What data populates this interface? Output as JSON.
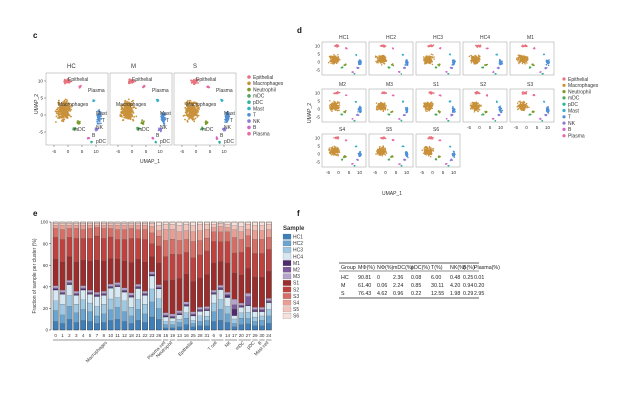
{
  "panels": {
    "c": {
      "letter": "c",
      "facets": [
        "HC",
        "M",
        "S"
      ],
      "ylabel": "UMAP_2",
      "xlabel": "UMAP_1",
      "xticks": [
        "-5",
        "0",
        "5",
        "10"
      ],
      "yticks": [
        "10",
        "5",
        "0",
        "-5"
      ],
      "cluster_labels": [
        "Epithelial",
        "Plasma",
        "Macrophages",
        "Mast",
        "T",
        "NK",
        "mDC",
        "B",
        "pDC"
      ]
    },
    "d": {
      "letter": "d",
      "facets": [
        "HC1",
        "HC2",
        "HC3",
        "HC4",
        "M1",
        "M2",
        "M3",
        "S1",
        "S2",
        "S3",
        "S4",
        "S5",
        "S6"
      ],
      "ylabel": "UMAP_2",
      "xlabel": "UMAP_1",
      "xticks": [
        "-5",
        "0",
        "5",
        "10"
      ],
      "yticks": [
        "10",
        "5",
        "0",
        "-5"
      ]
    },
    "e": {
      "letter": "e",
      "ylabel": "Fraction of sample per cluster (%)",
      "yticks": [
        "0",
        "20",
        "40",
        "60",
        "80",
        "100"
      ],
      "legend_title": "Sample",
      "group_labels": [
        "Macrophages",
        "Plasma cell",
        "Neutrophil",
        "Epithelial",
        "T cell",
        "NK",
        "mDC",
        "pDC",
        "B",
        "Mast cell"
      ]
    },
    "f": {
      "letter": "f"
    }
  },
  "legend_celltypes": [
    {
      "name": "Epithelial",
      "color": "#e8737d"
    },
    {
      "name": "Macrophages",
      "color": "#c9913a"
    },
    {
      "name": "Neutrophil",
      "color": "#7e9a2a"
    },
    {
      "name": "mDC",
      "color": "#49a85a"
    },
    {
      "name": "pDC",
      "color": "#2eb39b"
    },
    {
      "name": "Mast",
      "color": "#35aecb"
    },
    {
      "name": "T",
      "color": "#4f8fd6"
    },
    {
      "name": "NK",
      "color": "#8f7ad8"
    },
    {
      "name": "B",
      "color": "#d466c6"
    },
    {
      "name": "Plasma",
      "color": "#e86aa4"
    }
  ],
  "chart_data": {
    "type": "bar",
    "ylabel": "Fraction of sample per cluster (%)",
    "ylim": [
      0,
      100
    ],
    "categories": [
      "0",
      "1",
      "2",
      "3",
      "4",
      "5",
      "7",
      "8",
      "10",
      "11",
      "12",
      "18",
      "21",
      "22",
      "23",
      "26",
      "15",
      "19",
      "13",
      "16",
      "25",
      "28",
      "31",
      "6",
      "9",
      "14",
      "17",
      "20",
      "27",
      "29",
      "30",
      "24"
    ],
    "series": [
      {
        "name": "HC1",
        "color": "#3e7fb9",
        "values": [
          8,
          6,
          10,
          7,
          9,
          8,
          6,
          7,
          9,
          10,
          8,
          6,
          9,
          7,
          12,
          10,
          2,
          2,
          3,
          5,
          3,
          4,
          4,
          8,
          9,
          7,
          3,
          5,
          6,
          4,
          4,
          6
        ]
      },
      {
        "name": "HC2",
        "color": "#6aa4d0",
        "values": [
          10,
          8,
          12,
          9,
          10,
          9,
          7,
          8,
          10,
          11,
          9,
          7,
          10,
          8,
          14,
          10,
          3,
          3,
          4,
          6,
          3,
          4,
          5,
          9,
          10,
          8,
          3,
          6,
          5,
          4,
          5,
          7
        ]
      },
      {
        "name": "HC3",
        "color": "#9ec9e4",
        "values": [
          9,
          10,
          10,
          8,
          9,
          8,
          9,
          9,
          10,
          9,
          10,
          8,
          9,
          9,
          12,
          9,
          3,
          3,
          3,
          5,
          3,
          5,
          4,
          8,
          9,
          7,
          4,
          5,
          6,
          4,
          4,
          6
        ]
      },
      {
        "name": "HC4",
        "color": "#d5e8f3",
        "values": [
          10,
          9,
          10,
          8,
          9,
          8,
          9,
          8,
          10,
          10,
          8,
          9,
          10,
          8,
          12,
          9,
          4,
          3,
          4,
          6,
          4,
          4,
          5,
          8,
          9,
          8,
          3,
          5,
          6,
          5,
          4,
          6
        ]
      },
      {
        "name": "M1",
        "color": "#4d2b6e",
        "values": [
          1,
          1,
          1,
          1,
          1,
          1,
          1,
          1,
          1,
          1,
          1,
          1,
          1,
          1,
          1,
          1,
          1,
          1,
          1,
          1,
          1,
          1,
          1,
          1,
          1,
          2,
          6,
          1,
          1,
          1,
          1,
          1
        ]
      },
      {
        "name": "M2",
        "color": "#7f5b9d",
        "values": [
          1,
          1,
          1,
          1,
          1,
          1,
          1,
          1,
          1,
          1,
          1,
          1,
          1,
          1,
          1,
          1,
          1,
          1,
          1,
          1,
          1,
          1,
          1,
          1,
          1,
          1,
          4,
          1,
          8,
          1,
          1,
          1
        ]
      },
      {
        "name": "M3",
        "color": "#b6a2cc",
        "values": [
          2,
          2,
          2,
          2,
          2,
          2,
          2,
          2,
          2,
          2,
          2,
          2,
          2,
          2,
          2,
          2,
          2,
          2,
          2,
          2,
          2,
          2,
          2,
          2,
          2,
          2,
          5,
          2,
          3,
          2,
          2,
          2
        ]
      },
      {
        "name": "S1",
        "color": "#9d2c2c",
        "values": [
          25,
          26,
          22,
          27,
          24,
          27,
          30,
          28,
          24,
          22,
          25,
          28,
          23,
          27,
          14,
          20,
          30,
          32,
          30,
          26,
          28,
          27,
          30,
          25,
          22,
          27,
          24,
          26,
          24,
          28,
          28,
          25
        ]
      },
      {
        "name": "S2",
        "color": "#c0423f",
        "values": [
          20,
          21,
          18,
          22,
          20,
          21,
          22,
          21,
          20,
          18,
          20,
          22,
          19,
          21,
          12,
          16,
          22,
          24,
          22,
          20,
          22,
          21,
          22,
          20,
          18,
          20,
          18,
          21,
          20,
          22,
          22,
          20
        ]
      },
      {
        "name": "S3",
        "color": "#d66e66",
        "values": [
          8,
          9,
          8,
          9,
          8,
          9,
          8,
          9,
          8,
          9,
          9,
          9,
          8,
          9,
          10,
          9,
          15,
          14,
          13,
          12,
          15,
          13,
          12,
          9,
          9,
          9,
          14,
          12,
          11,
          13,
          13,
          11
        ]
      },
      {
        "name": "S4",
        "color": "#e99d93",
        "values": [
          3,
          4,
          3,
          3,
          4,
          3,
          2,
          3,
          3,
          4,
          4,
          3,
          4,
          4,
          6,
          5,
          10,
          9,
          8,
          8,
          9,
          9,
          8,
          4,
          5,
          4,
          7,
          7,
          6,
          8,
          8,
          7
        ]
      },
      {
        "name": "S5",
        "color": "#f2c4bc",
        "values": [
          2,
          2,
          2,
          2,
          2,
          2,
          2,
          2,
          2,
          2,
          2,
          2,
          2,
          2,
          3,
          5,
          5,
          5,
          6,
          6,
          6,
          6,
          5,
          3,
          3,
          3,
          4,
          5,
          5,
          5,
          5,
          5
        ]
      },
      {
        "name": "S6",
        "color": "#f7e1dc",
        "values": [
          1,
          1,
          1,
          1,
          1,
          1,
          1,
          1,
          1,
          1,
          1,
          1,
          1,
          1,
          1,
          3,
          2,
          2,
          3,
          2,
          3,
          2,
          2,
          2,
          1,
          2,
          3,
          4,
          2,
          3,
          3,
          2
        ]
      }
    ]
  },
  "table": {
    "headers": [
      "Group",
      "MΦ(%)",
      "NΦ(%)",
      "mDC(%)",
      "pDC(%)",
      "T(%)",
      "NK(%)",
      "B(%)",
      "Plasma(%)"
    ],
    "rows": [
      [
        "HC",
        "90.81",
        "0",
        "2.36",
        "0.08",
        "6.00",
        "0.48",
        "0.25",
        "0.01"
      ],
      [
        "M",
        "61.40",
        "0.06",
        "2.24",
        "0.85",
        "30.11",
        "4.20",
        "0.94",
        "0.20"
      ],
      [
        "S",
        "76.43",
        "4.62",
        "0.96",
        "0.22",
        "12.55",
        "1.98",
        "0.29",
        "2.95"
      ]
    ]
  }
}
